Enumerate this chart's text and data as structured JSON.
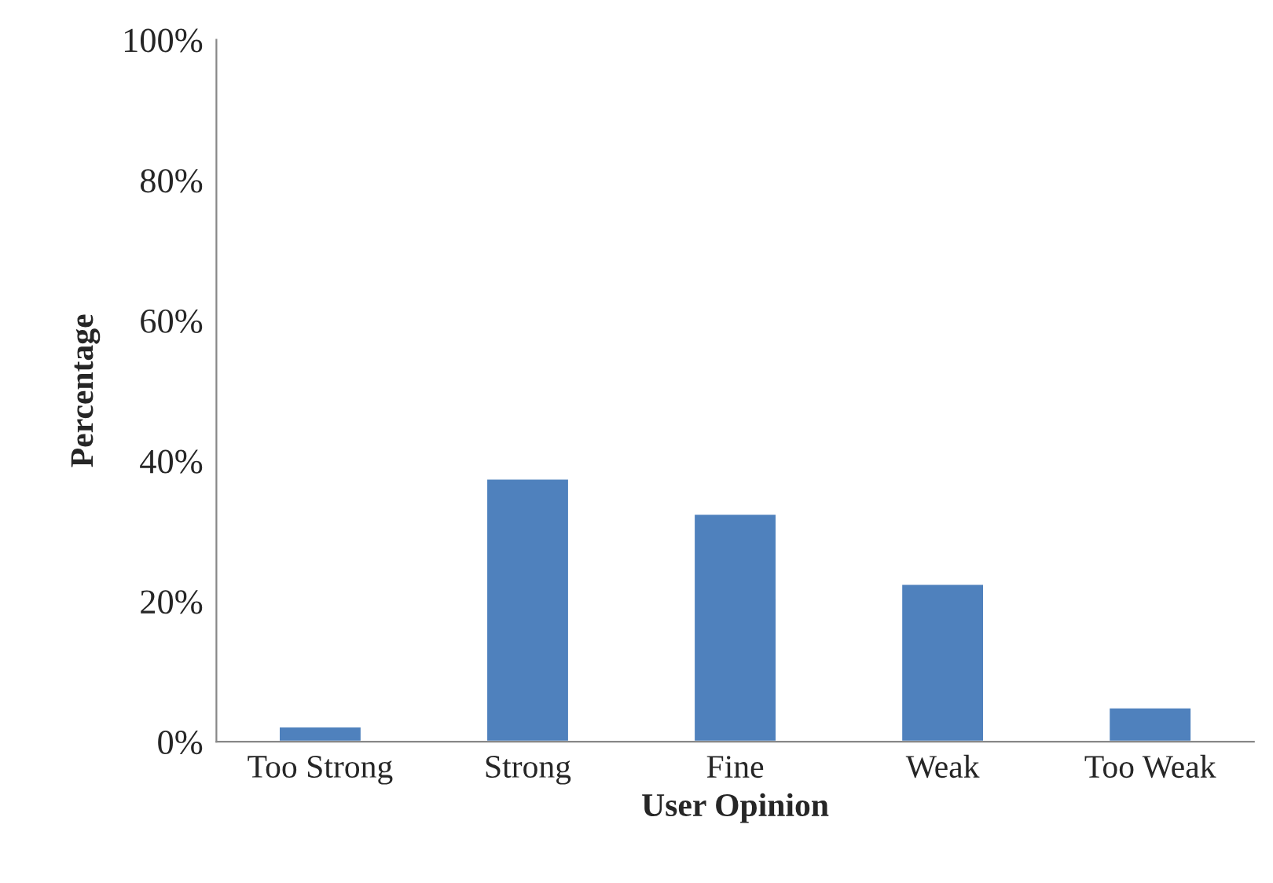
{
  "chart_data": {
    "type": "bar",
    "xlabel": "User Opinion",
    "ylabel": "Percentage",
    "categories": [
      "Too Strong",
      "Strong",
      "Fine",
      "Weak",
      "Too Weak"
    ],
    "values": [
      2.2,
      37.5,
      32.5,
      22.5,
      4.9
    ],
    "color": "#4f81bd",
    "ylim": [
      0,
      100
    ],
    "yticks": [
      {
        "value": 0,
        "label": "0%"
      },
      {
        "value": 20,
        "label": "20%"
      },
      {
        "value": 40,
        "label": "40%"
      },
      {
        "value": 60,
        "label": "60%"
      },
      {
        "value": 80,
        "label": "80%"
      },
      {
        "value": 100,
        "label": "100%"
      }
    ],
    "grid": false
  }
}
